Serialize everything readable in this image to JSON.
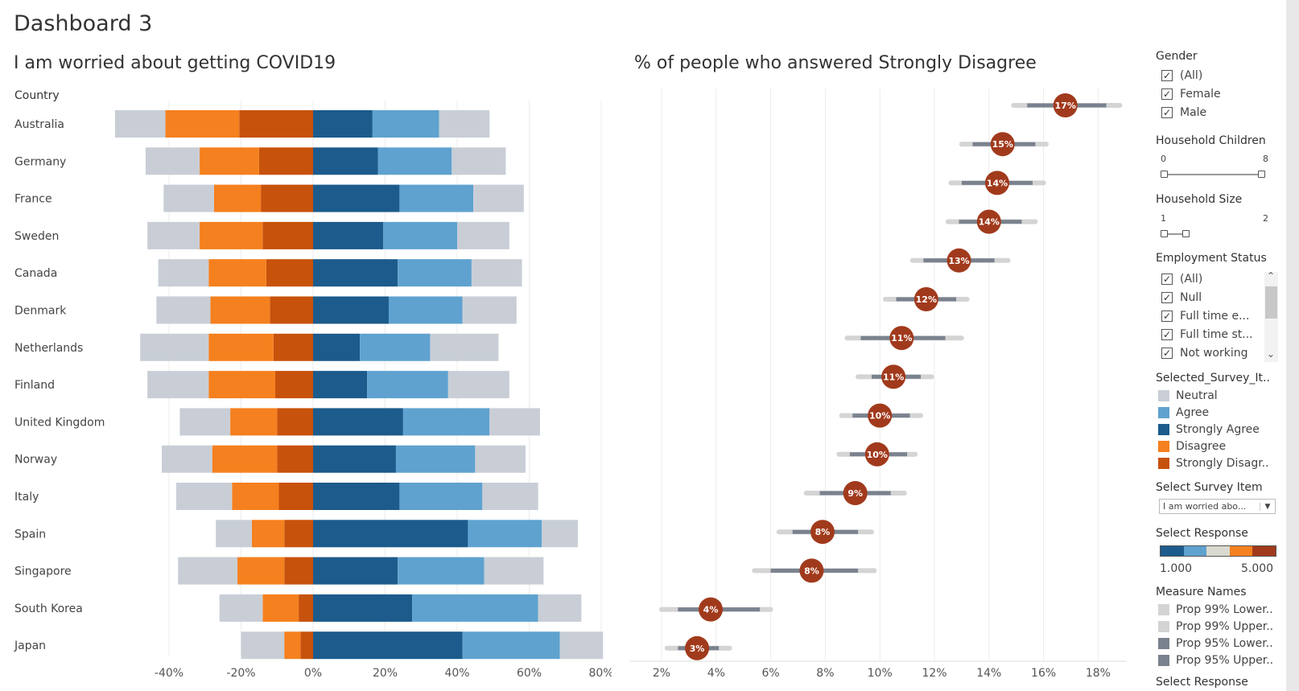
{
  "dashboard_title": "Dashboard 3",
  "colors": {
    "neutral": "#c9ced6",
    "agree": "#5fa2cf",
    "strongly_agree": "#1c5b8c",
    "disagree": "#f5801f",
    "strongly_disagree": "#c7520b",
    "dot": "#a13a1c",
    "ci99": "#d4d4d4",
    "ci95": "#7a828e"
  },
  "chart_data": [
    {
      "type": "bar",
      "subtype": "diverging-stacked",
      "title": "I am worried about getting COVID19",
      "category_header": "Country",
      "categories": [
        "Australia",
        "Germany",
        "France",
        "Sweden",
        "Canada",
        "Denmark",
        "Netherlands",
        "Finland",
        "United Kingdom",
        "Norway",
        "Italy",
        "Spain",
        "Singapore",
        "South Korea",
        "Japan"
      ],
      "series": [
        {
          "name": "Strongly Disagree",
          "key": "strongly_disagree",
          "values": [
            -20.5,
            -15,
            -14.5,
            -14,
            -13,
            -12,
            -11,
            -10.5,
            -10,
            -10,
            -9.5,
            -8,
            -8,
            -4,
            -3.5
          ]
        },
        {
          "name": "Disagree",
          "key": "disagree",
          "values": [
            -20.5,
            -16.5,
            -13,
            -17.5,
            -16,
            -16.5,
            -18,
            -18.5,
            -13,
            -18,
            -13,
            -9,
            -13,
            -10,
            -4.5
          ]
        },
        {
          "name": "Neutral (negative half)",
          "key": "neutral",
          "values": [
            -14,
            -15,
            -14,
            -14.5,
            -14,
            -15,
            -19,
            -17,
            -14,
            -14,
            -15.5,
            -10,
            -16.5,
            -12,
            -12
          ]
        },
        {
          "name": "Strongly Agree",
          "key": "strongly_agree",
          "values": [
            16.5,
            18,
            24,
            19.5,
            23.5,
            21,
            13,
            15,
            25,
            23,
            24,
            43,
            23.5,
            27.5,
            41.5
          ]
        },
        {
          "name": "Agree",
          "key": "agree",
          "values": [
            18.5,
            20.5,
            20.5,
            20.5,
            20.5,
            20.5,
            19.5,
            22.5,
            24,
            22,
            23,
            20.5,
            24,
            35,
            27
          ]
        },
        {
          "name": "Neutral (positive half)",
          "key": "neutral",
          "values": [
            14,
            15,
            14,
            14.5,
            14,
            15,
            19,
            17,
            14,
            14,
            15.5,
            10,
            16.5,
            12,
            12
          ]
        }
      ],
      "xlim": [
        -40,
        80
      ],
      "xticks": [
        "-40%",
        "-20%",
        "0%",
        "20%",
        "40%",
        "60%",
        "80%"
      ],
      "xtick_values": [
        -40,
        -20,
        0,
        20,
        40,
        60,
        80
      ]
    },
    {
      "type": "scatter",
      "subtype": "dot-with-confidence-intervals",
      "title": "% of people who answered Strongly Disagree",
      "points": [
        {
          "value": 16.8,
          "label": "17%",
          "ci95": [
            15.4,
            18.3
          ],
          "ci99": [
            14.9,
            18.8
          ]
        },
        {
          "value": 14.5,
          "label": "15%",
          "ci95": [
            13.4,
            15.7
          ],
          "ci99": [
            13.0,
            16.1
          ]
        },
        {
          "value": 14.3,
          "label": "14%",
          "ci95": [
            13.0,
            15.6
          ],
          "ci99": [
            12.6,
            16.0
          ]
        },
        {
          "value": 14.0,
          "label": "14%",
          "ci95": [
            12.9,
            15.2
          ],
          "ci99": [
            12.5,
            15.7
          ]
        },
        {
          "value": 12.9,
          "label": "13%",
          "ci95": [
            11.6,
            14.2
          ],
          "ci99": [
            11.2,
            14.7
          ]
        },
        {
          "value": 11.7,
          "label": "12%",
          "ci95": [
            10.6,
            12.8
          ],
          "ci99": [
            10.2,
            13.2
          ]
        },
        {
          "value": 10.8,
          "label": "11%",
          "ci95": [
            9.3,
            12.4
          ],
          "ci99": [
            8.8,
            13.0
          ]
        },
        {
          "value": 10.5,
          "label": "11%",
          "ci95": [
            9.7,
            11.5
          ],
          "ci99": [
            9.2,
            11.9
          ]
        },
        {
          "value": 10.0,
          "label": "10%",
          "ci95": [
            9.0,
            11.1
          ],
          "ci99": [
            8.6,
            11.5
          ]
        },
        {
          "value": 9.9,
          "label": "10%",
          "ci95": [
            8.9,
            11.0
          ],
          "ci99": [
            8.5,
            11.3
          ]
        },
        {
          "value": 9.1,
          "label": "9%",
          "ci95": [
            7.8,
            10.4
          ],
          "ci99": [
            7.3,
            10.9
          ]
        },
        {
          "value": 7.9,
          "label": "8%",
          "ci95": [
            6.8,
            9.2
          ],
          "ci99": [
            6.3,
            9.7
          ]
        },
        {
          "value": 7.5,
          "label": "8%",
          "ci95": [
            6.0,
            9.2
          ],
          "ci99": [
            5.4,
            9.8
          ]
        },
        {
          "value": 3.8,
          "label": "4%",
          "ci95": [
            2.6,
            5.6
          ],
          "ci99": [
            2.0,
            6.0
          ]
        },
        {
          "value": 3.3,
          "label": "3%",
          "ci95": [
            2.6,
            4.1
          ],
          "ci99": [
            2.2,
            4.5
          ]
        }
      ],
      "xlim": [
        1.2,
        19.2
      ],
      "xticks": [
        "2%",
        "4%",
        "6%",
        "8%",
        "10%",
        "12%",
        "14%",
        "16%",
        "18%"
      ],
      "xtick_values": [
        2,
        4,
        6,
        8,
        10,
        12,
        14,
        16,
        18
      ]
    }
  ],
  "filters": {
    "gender": {
      "title": "Gender",
      "items": [
        "(All)",
        "Female",
        "Male"
      ]
    },
    "household_children": {
      "title": "Household Children",
      "min": "0",
      "max": "8"
    },
    "household_size": {
      "title": "Household Size",
      "min": "1",
      "max": "2"
    },
    "employment": {
      "title": "Employment Status",
      "items": [
        "(All)",
        "Null",
        "Full time e...",
        "Full time st...",
        "Not working"
      ]
    },
    "response_legend": {
      "title": "Selected_Survey_It..",
      "items": [
        {
          "label": "Neutral",
          "key": "neutral"
        },
        {
          "label": "Agree",
          "key": "agree"
        },
        {
          "label": "Strongly Agree",
          "key": "strongly_agree"
        },
        {
          "label": "Disagree",
          "key": "disagree"
        },
        {
          "label": "Strongly Disagr..",
          "key": "strongly_disagree"
        }
      ]
    },
    "survey_item": {
      "title": "Select Survey Item",
      "value": "I am worried abo..."
    },
    "select_response": {
      "title": "Select Response",
      "min": "1.000",
      "max": "5.000"
    },
    "measure_names": {
      "title": "Measure Names",
      "items": [
        {
          "label": "Prop 99% Lower..",
          "color": "#d4d4d4"
        },
        {
          "label": "Prop 99% Upper..",
          "color": "#d4d4d4"
        },
        {
          "label": "Prop 95% Lower..",
          "color": "#7a828e"
        },
        {
          "label": "Prop 95% Upper..",
          "color": "#7a828e"
        }
      ]
    },
    "select_response_2": {
      "title": "Select Response"
    }
  }
}
